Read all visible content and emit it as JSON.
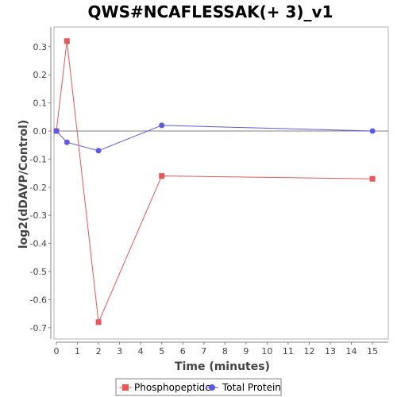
{
  "chart_data": {
    "type": "line",
    "title": "QWS#NCAFLESSAK(+ 3)_v1",
    "xlabel": "Time (minutes)",
    "ylabel": "log2(dDAVP/Control)",
    "xlim": [
      0,
      15.75
    ],
    "ylim": [
      -0.74,
      0.37
    ],
    "xticks": [
      0,
      1,
      2,
      3,
      4,
      5,
      6,
      7,
      8,
      9,
      10,
      11,
      12,
      13,
      14,
      15
    ],
    "yticks": [
      0.3,
      0.2,
      0.1,
      0.0,
      -0.1,
      -0.2,
      -0.3,
      -0.4,
      -0.5,
      -0.6,
      -0.7
    ],
    "ytick_labels": [
      "0.3",
      "0.2",
      "0.1",
      "0.0",
      "-0.1",
      "-0.2",
      "-0.3",
      "-0.4",
      "-0.5",
      "-0.6",
      "-0.7"
    ],
    "zero_line": true,
    "grid": false,
    "legend_position": "bottom-center",
    "series": [
      {
        "name": "Phosphopeptide",
        "color": "#e8575a",
        "marker": "square",
        "x": [
          0,
          0.5,
          2,
          5,
          15
        ],
        "y": [
          0.0,
          0.32,
          -0.68,
          -0.16,
          -0.17
        ]
      },
      {
        "name": "Total Protein",
        "color": "#5a5ae8",
        "marker": "circle",
        "x": [
          0,
          0.5,
          2,
          5,
          15
        ],
        "y": [
          0.0,
          -0.04,
          -0.07,
          0.02,
          0.0
        ]
      }
    ]
  }
}
